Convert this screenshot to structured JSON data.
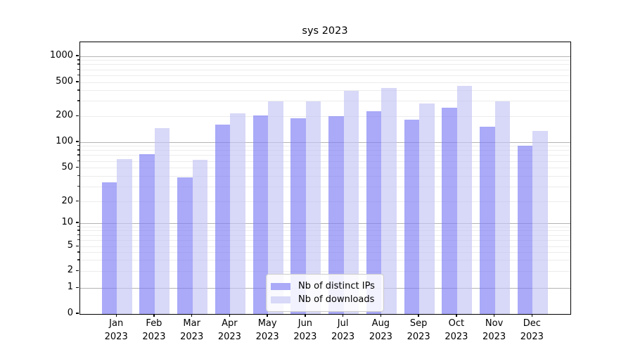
{
  "title": "sys 2023",
  "chart_data": {
    "type": "bar",
    "title": "sys 2023",
    "categories": [
      "Jan",
      "Feb",
      "Mar",
      "Apr",
      "May",
      "Jun",
      "Jul",
      "Aug",
      "Sep",
      "Oct",
      "Nov",
      "Dec"
    ],
    "year": "2023",
    "series": [
      {
        "name": "Nb of distinct IPs",
        "color": "#aaaaf8",
        "values": [
          34,
          73,
          39,
          161,
          205,
          190,
          203,
          230,
          182,
          252,
          152,
          91
        ]
      },
      {
        "name": "Nb of downloads",
        "color": "#d8d8f8",
        "values": [
          63,
          146,
          62,
          217,
          297,
          302,
          400,
          432,
          281,
          452,
          301,
          135
        ]
      }
    ],
    "xlabel": "",
    "ylabel": "",
    "yscale": "symlog",
    "yticks": [
      0,
      1,
      2,
      5,
      10,
      20,
      50,
      100,
      200,
      500,
      1000
    ],
    "ylim": [
      0,
      1500
    ],
    "grid": true,
    "legend_position": "lower center"
  },
  "colors": {
    "major_grid": "#b4b4b4",
    "minor_grid": "#ececec",
    "spine": "#000000"
  }
}
